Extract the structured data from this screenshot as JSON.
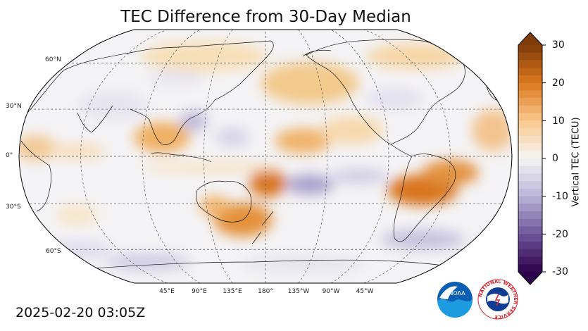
{
  "title": "TEC Difference from 30-Day Median",
  "timestamp": "2025-02-20 03:05Z",
  "map": {
    "projection": "robinson",
    "central_longitude": 180,
    "gridlines": "dashed",
    "lat_labels": [
      "60°N",
      "30°N",
      "0°",
      "30°S",
      "60°S"
    ],
    "lon_labels": [
      "45°E",
      "90°E",
      "135°E",
      "180°",
      "135°W",
      "90°W",
      "45°W"
    ]
  },
  "colorbar": {
    "label": "Vertical TEC (TECU)",
    "ticks": [
      "30",
      "20",
      "10",
      "0",
      "-10",
      "-20",
      "-30"
    ],
    "min": -30,
    "max": 30,
    "colormap": "PuOr_r",
    "extend": "both"
  },
  "logos": {
    "noaa": {
      "text": "NOAA",
      "color": "#0a5fb4"
    },
    "nws": {
      "text": "NATIONAL WEATHER SERVICE",
      "color": "#d8262e"
    }
  }
}
